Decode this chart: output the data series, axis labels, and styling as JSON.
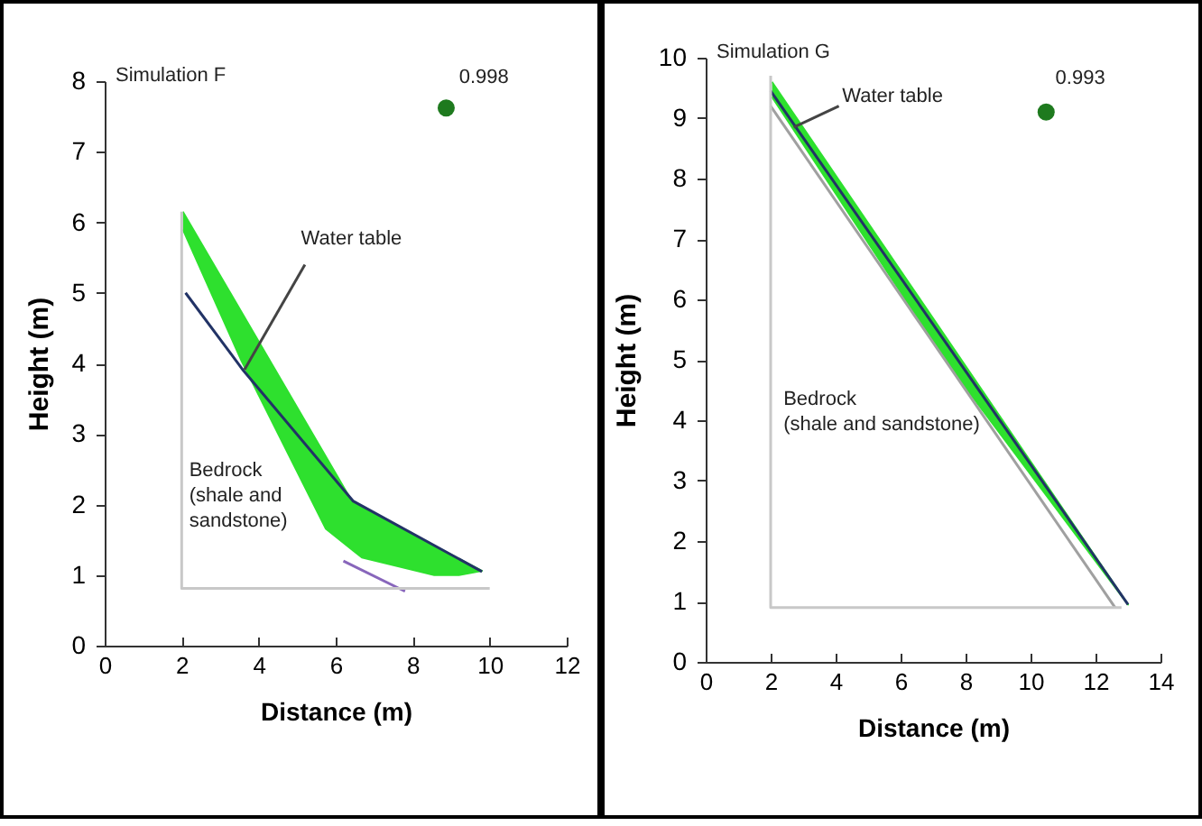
{
  "chart_data": [
    {
      "type": "line",
      "title": "Simulation F",
      "xlabel": "Distance (m)",
      "ylabel": "Height (m)",
      "xlim": [
        0,
        12
      ],
      "xticks": [
        0,
        2,
        4,
        6,
        8,
        10,
        12
      ],
      "ylim": [
        0,
        8
      ],
      "yticks": [
        0,
        1,
        2,
        3,
        4,
        5,
        6,
        7,
        8
      ],
      "series": [
        {
          "type": "area",
          "color": "#2ee02e",
          "x": [
            2.03,
            6.45,
            9.8,
            9.2,
            8.56,
            6.68,
            6.45,
            5.74,
            3.55,
            2.03
          ],
          "values": [
            6.15,
            2.02,
            1.06,
            1.0,
            1.0,
            1.25,
            1.35,
            1.66,
            4.04,
            5.9
          ]
        },
        {
          "color": "#223366",
          "x": [
            2.1,
            3.6,
            6.45,
            9.8
          ],
          "values": [
            5.0,
            3.9,
            2.05,
            1.05
          ]
        },
        {
          "color": "#8866bb",
          "x": [
            6.2,
            7.8
          ],
          "values": [
            1.2,
            0.77
          ]
        },
        {
          "color": "#c8c8c8",
          "x": [
            2.0,
            2.0,
            10.0
          ],
          "values": [
            6.15,
            0.81,
            0.81
          ]
        },
        {
          "color": "#444444",
          "x": [
            5.2,
            3.63
          ],
          "values": [
            5.4,
            3.91
          ]
        },
        {
          "type": "scatter",
          "color": "#1e7a1e",
          "x": [
            8.87
          ],
          "values": [
            7.62
          ]
        }
      ],
      "annotations": [
        "Water table",
        "Bedrock\n(shale and\nsandstone)",
        "0.998"
      ]
    },
    {
      "type": "line",
      "title": "Simulation G",
      "xlabel": "Distance (m)",
      "ylabel": "Height (m)",
      "xlim": [
        0,
        14
      ],
      "xticks": [
        0,
        2,
        4,
        6,
        8,
        10,
        12,
        14
      ],
      "ylim": [
        0,
        10
      ],
      "yticks": [
        0,
        1,
        2,
        3,
        4,
        5,
        6,
        7,
        8,
        9,
        10
      ],
      "series": [
        {
          "type": "area",
          "color": "#2ee02e",
          "x": [
            2.04,
            13.0,
            7.5,
            2.04
          ],
          "values": [
            9.6,
            0.95,
            4.9,
            9.35
          ]
        },
        {
          "color": "#223366",
          "x": [
            2.0,
            13.0
          ],
          "values": [
            9.45,
            0.95
          ]
        },
        {
          "color": "#a0a0a0",
          "x": [
            2.0,
            12.6
          ],
          "values": [
            9.2,
            0.9
          ]
        },
        {
          "color": "#c8c8c8",
          "x": [
            2.0,
            2.0,
            12.8
          ],
          "values": [
            9.7,
            0.9,
            0.9
          ]
        },
        {
          "color": "#444444",
          "x": [
            4.1,
            2.71
          ],
          "values": [
            9.2,
            8.85
          ]
        },
        {
          "type": "scatter",
          "color": "#1e7a1e",
          "x": [
            10.48
          ],
          "values": [
            9.1
          ]
        }
      ],
      "annotations": [
        "Water table",
        "Bedrock\n(shale and sandstone)",
        "0.993"
      ]
    }
  ]
}
